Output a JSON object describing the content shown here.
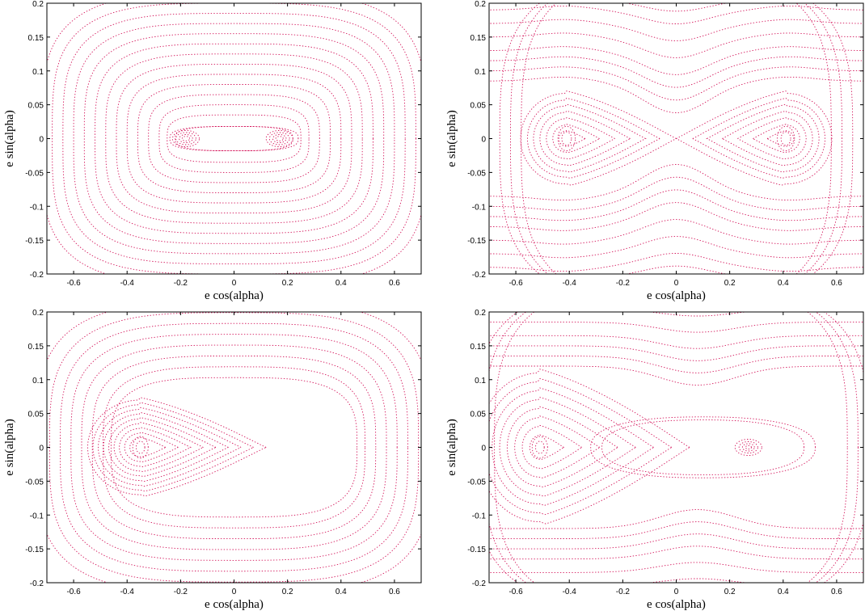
{
  "chart_data": [
    {
      "type": "scatter",
      "xlabel": "e cos(alpha)",
      "ylabel": "e sin(alpha)",
      "xlim": [
        -0.7,
        0.7
      ],
      "ylim": [
        -0.2,
        0.2
      ],
      "xticks": [
        "-0.6",
        "-0.4",
        "-0.2",
        "0",
        "0.2",
        "0.4",
        "0.6"
      ],
      "yticks": [
        "0.2",
        "0.15",
        "0.1",
        "0.05",
        "0",
        "-0.05",
        "-0.1",
        "-0.15",
        "-0.2"
      ],
      "color": "#d4145a",
      "fixed_points": [
        [
          -0.18,
          0.0
        ],
        [
          0.17,
          0.0
        ]
      ],
      "island_half_width": 0.05,
      "island_half_height": 0.012
    },
    {
      "type": "scatter",
      "xlabel": "e cos(alpha)",
      "ylabel": "e sin(alpha)",
      "xlim": [
        -0.7,
        0.7
      ],
      "ylim": [
        -0.2,
        0.2
      ],
      "xticks": [
        "-0.6",
        "-0.4",
        "-0.2",
        "0",
        "0.2",
        "0.4",
        "0.6"
      ],
      "yticks": [
        "0.2",
        "0.15",
        "0.1",
        "0.05",
        "0",
        "-0.05",
        "-0.1",
        "-0.15",
        "-0.2"
      ],
      "color": "#d4145a",
      "fixed_points": [
        [
          -0.41,
          0.0
        ],
        [
          0.41,
          0.0
        ]
      ],
      "saddle_x": 0.0,
      "separatrix_half_height": 0.067
    },
    {
      "type": "scatter",
      "xlabel": "e cos(alpha)",
      "ylabel": "e sin(alpha)",
      "xlim": [
        -0.7,
        0.7
      ],
      "ylim": [
        -0.2,
        0.2
      ],
      "xticks": [
        "-0.6",
        "-0.4",
        "-0.2",
        "0",
        "0.2",
        "0.4",
        "0.6"
      ],
      "yticks": [
        "0.2",
        "0.15",
        "0.1",
        "0.05",
        "0",
        "-0.05",
        "-0.1",
        "-0.15",
        "-0.2"
      ],
      "color": "#d4145a",
      "fixed_points": [
        [
          -0.35,
          0.0
        ]
      ]
    },
    {
      "type": "scatter",
      "xlabel": "e cos(alpha)",
      "ylabel": "e sin(alpha)",
      "xlim": [
        -0.7,
        0.7
      ],
      "ylim": [
        -0.2,
        0.2
      ],
      "xticks": [
        "-0.6",
        "-0.4",
        "-0.2",
        "0",
        "0.2",
        "0.4",
        "0.6"
      ],
      "yticks": [
        "0.2",
        "0.15",
        "0.1",
        "0.05",
        "0",
        "-0.05",
        "-0.1",
        "-0.15",
        "-0.2"
      ],
      "color": "#d4145a",
      "fixed_points": [
        [
          -0.51,
          0.0
        ],
        [
          0.27,
          0.0
        ]
      ],
      "saddle_x": 0.05,
      "separatrix_half_height": 0.11
    }
  ]
}
